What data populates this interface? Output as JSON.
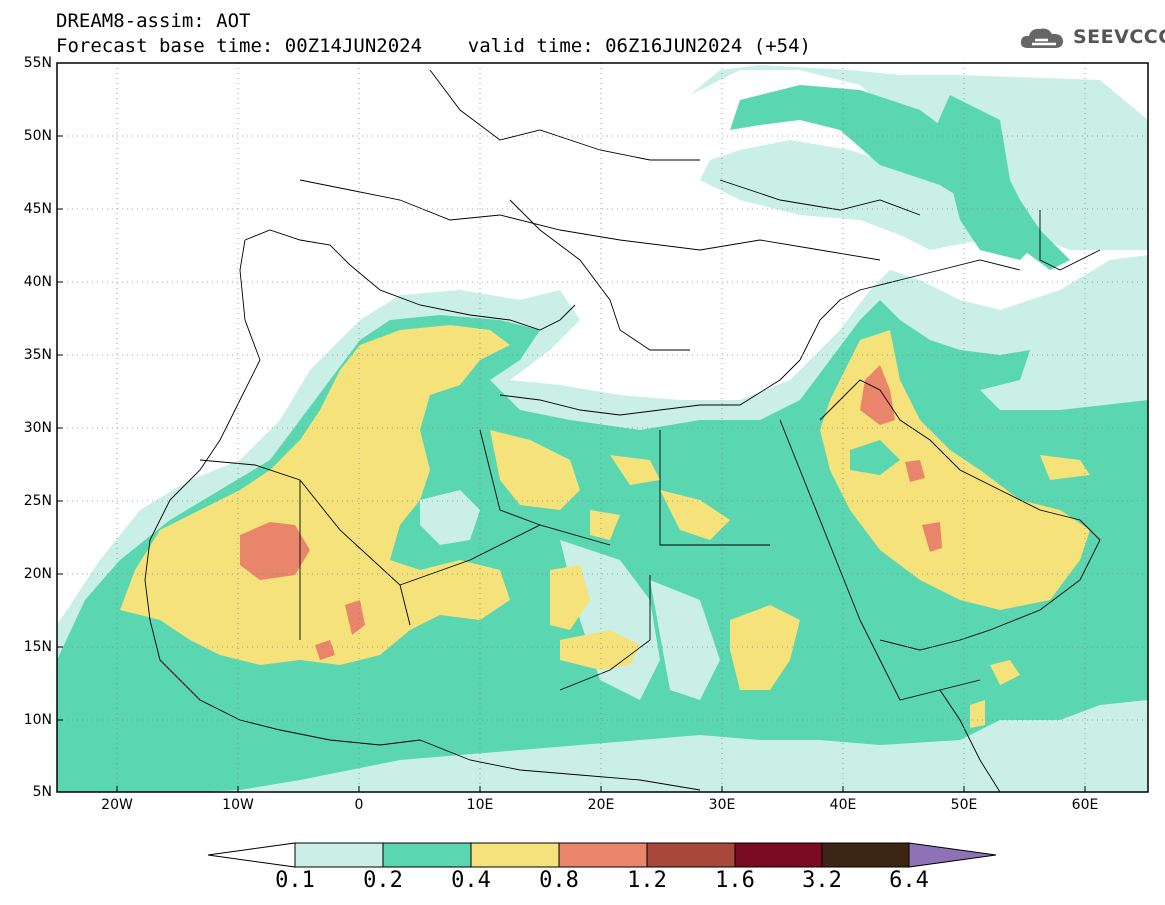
{
  "title": {
    "line1": "DREAM8-assim: AOT",
    "line2": "Forecast base time: 00Z14JUN2024    valid time: 06Z16JUN2024 (+54)"
  },
  "logo": {
    "text": "SEEVCCC",
    "icon": "cloud-icon"
  },
  "map": {
    "lat_labels": [
      "55N",
      "50N",
      "45N",
      "40N",
      "35N",
      "30N",
      "25N",
      "20N",
      "15N",
      "10N",
      "5N"
    ],
    "lon_labels": [
      "20W",
      "10W",
      "0",
      "10E",
      "20E",
      "30E",
      "40E",
      "50E",
      "60E"
    ],
    "lat_range": [
      5,
      55
    ],
    "lon_range": [
      -25,
      65
    ]
  },
  "colorbar": {
    "labels": [
      "0.1",
      "0.2",
      "0.4",
      "0.8",
      "1.2",
      "1.6",
      "3.2",
      "6.4"
    ],
    "colors": [
      "#ffffff",
      "#c9efe6",
      "#5ad6b0",
      "#f5e27a",
      "#e8856a",
      "#a8473c",
      "#7a0a22",
      "#3d2515",
      "#8f72b5"
    ]
  }
}
